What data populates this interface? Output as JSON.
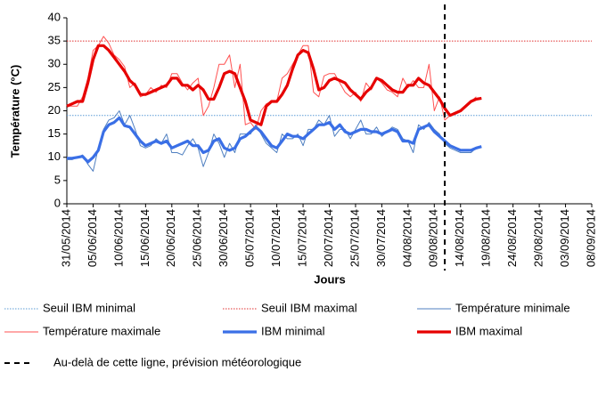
{
  "chart_data": {
    "type": "line",
    "y_label": "Température (°C)",
    "x_label": "Jours",
    "ylim": [
      0,
      40
    ],
    "yticks": [
      0,
      5,
      10,
      15,
      20,
      25,
      30,
      35,
      40
    ],
    "xlim": [
      "31/05/2014",
      "08/09/2014"
    ],
    "xticks": [
      "31/05/2014",
      "05/06/2014",
      "10/06/2014",
      "15/06/2014",
      "20/06/2014",
      "25/06/2014",
      "30/06/2014",
      "05/07/2014",
      "10/07/2014",
      "15/07/2014",
      "20/07/2014",
      "25/07/2014",
      "30/07/2014",
      "04/08/2014",
      "09/08/2014",
      "14/08/2014",
      "19/08/2014",
      "24/08/2014",
      "29/08/2014",
      "03/09/2014",
      "08/09/2014"
    ],
    "x": [
      "31/05/2014",
      "01/06/2014",
      "02/06/2014",
      "03/06/2014",
      "04/06/2014",
      "05/06/2014",
      "06/06/2014",
      "07/06/2014",
      "08/06/2014",
      "09/06/2014",
      "10/06/2014",
      "11/06/2014",
      "12/06/2014",
      "13/06/2014",
      "14/06/2014",
      "15/06/2014",
      "16/06/2014",
      "17/06/2014",
      "18/06/2014",
      "19/06/2014",
      "20/06/2014",
      "21/06/2014",
      "22/06/2014",
      "23/06/2014",
      "24/06/2014",
      "25/06/2014",
      "26/06/2014",
      "27/06/2014",
      "28/06/2014",
      "29/06/2014",
      "30/06/2014",
      "01/07/2014",
      "02/07/2014",
      "03/07/2014",
      "04/07/2014",
      "05/07/2014",
      "06/07/2014",
      "07/07/2014",
      "08/07/2014",
      "09/07/2014",
      "10/07/2014",
      "11/07/2014",
      "12/07/2014",
      "13/07/2014",
      "14/07/2014",
      "15/07/2014",
      "16/07/2014",
      "17/07/2014",
      "18/07/2014",
      "19/07/2014",
      "20/07/2014",
      "21/07/2014",
      "22/07/2014",
      "23/07/2014",
      "24/07/2014",
      "25/07/2014",
      "26/07/2014",
      "27/07/2014",
      "28/07/2014",
      "29/07/2014",
      "30/07/2014",
      "31/07/2014",
      "01/08/2014",
      "02/08/2014",
      "03/08/2014",
      "04/08/2014",
      "05/08/2014",
      "06/08/2014",
      "07/08/2014",
      "08/08/2014",
      "09/08/2014",
      "10/08/2014",
      "11/08/2014",
      "12/08/2014",
      "13/08/2014",
      "14/08/2014",
      "15/08/2014",
      "16/08/2014",
      "17/08/2014",
      "18/08/2014"
    ],
    "series": [
      {
        "name": "Seuil IBM minimal",
        "color": "#5b9bd5",
        "style": "dotted",
        "value": 19
      },
      {
        "name": "Seuil IBM maximal",
        "color": "#e03030",
        "style": "dotted",
        "value": 35
      },
      {
        "name": "Température minimale",
        "color": "#4f7fc0",
        "style": "thin",
        "values": [
          9.5,
          9.5,
          10,
          10.5,
          8.5,
          7,
          12,
          16,
          18,
          18.5,
          20,
          17,
          19,
          16,
          12.5,
          12,
          12.5,
          14,
          13,
          15,
          11,
          11,
          10.5,
          12.5,
          14,
          12,
          8,
          11,
          15,
          13,
          10,
          13,
          11,
          15,
          15,
          15,
          17,
          15,
          13,
          12,
          11,
          15,
          14,
          14,
          15,
          12.5,
          16,
          16,
          18,
          17,
          19,
          14.5,
          16,
          16,
          14,
          16,
          18,
          15,
          15,
          16.5,
          14.5,
          15.5,
          16.5,
          16,
          14,
          13.5,
          11,
          17,
          16,
          17.5,
          16,
          15,
          13,
          12,
          11.5,
          11,
          11,
          11,
          12,
          null
        ]
      },
      {
        "name": "Température maximale",
        "color": "#ff5050",
        "style": "thin",
        "values": [
          21,
          21,
          21,
          23,
          27,
          33,
          34,
          36,
          34.5,
          32,
          31,
          29.5,
          25,
          26,
          23,
          23.5,
          25,
          24,
          25.5,
          25,
          28,
          28,
          26,
          24.5,
          26,
          27,
          19,
          21,
          25,
          30,
          30,
          32,
          25,
          30,
          17,
          17.5,
          16,
          20,
          21.5,
          22,
          22,
          27,
          28,
          30,
          32,
          34,
          34,
          24,
          23,
          27.5,
          28,
          28,
          26,
          24,
          23,
          24,
          22,
          26,
          24.5,
          27,
          26,
          24.5,
          24,
          23,
          27,
          25,
          26.5,
          25,
          25,
          30,
          20,
          23,
          18,
          19,
          19.5,
          20,
          21,
          22,
          23,
          null
        ]
      },
      {
        "name": "IBM minimal",
        "color": "#3a6fe6",
        "style": "thick",
        "values": [
          9.8,
          9.8,
          10,
          10.2,
          9,
          10,
          11.5,
          15.5,
          17,
          17.5,
          18.5,
          16.8,
          16.5,
          15,
          13.5,
          12.5,
          13,
          13.5,
          13,
          13.5,
          12,
          12.5,
          13,
          13.5,
          12.5,
          12.5,
          11,
          11.5,
          13.5,
          14,
          12,
          11.5,
          12,
          14,
          14.5,
          15.5,
          16.5,
          15.5,
          14,
          12.5,
          12,
          13.5,
          15,
          14.5,
          14.5,
          14,
          15,
          16,
          17,
          17,
          17.5,
          16,
          17,
          15.5,
          15,
          15.5,
          16,
          16,
          15.5,
          15.5,
          15,
          15.5,
          16,
          15.5,
          13.5,
          13.5,
          13,
          16,
          16.5,
          17,
          15.5,
          14.5,
          13.5,
          12.5,
          12,
          11.5,
          11.5,
          11.5,
          12,
          12.3
        ]
      },
      {
        "name": "IBM maximal",
        "color": "#e60000",
        "style": "thick",
        "values": [
          21,
          21.5,
          22,
          22,
          26,
          31,
          34,
          34,
          33,
          31.5,
          30,
          28.5,
          26.5,
          25.5,
          23.5,
          23.5,
          24,
          24.5,
          25,
          25.5,
          27,
          27,
          25.5,
          25.5,
          24.5,
          25.5,
          24.5,
          22.5,
          22.5,
          25,
          28,
          28.5,
          28,
          25,
          22,
          18,
          17.5,
          17,
          21,
          22,
          22,
          23.5,
          25.5,
          29,
          32,
          33,
          32.5,
          29,
          24.5,
          25,
          26.5,
          27,
          26.5,
          26,
          24.5,
          23.5,
          22.5,
          24,
          25,
          27,
          26.5,
          25.5,
          24.5,
          24,
          24,
          25.5,
          25.5,
          27,
          26,
          25.5,
          24,
          22.5,
          20.5,
          19,
          19.5,
          20,
          21,
          22,
          22.5,
          22.7
        ]
      }
    ],
    "forecast_line": {
      "x": "11/08/2014",
      "label": "Au-delà de cette ligne, prévision météorologique"
    }
  }
}
